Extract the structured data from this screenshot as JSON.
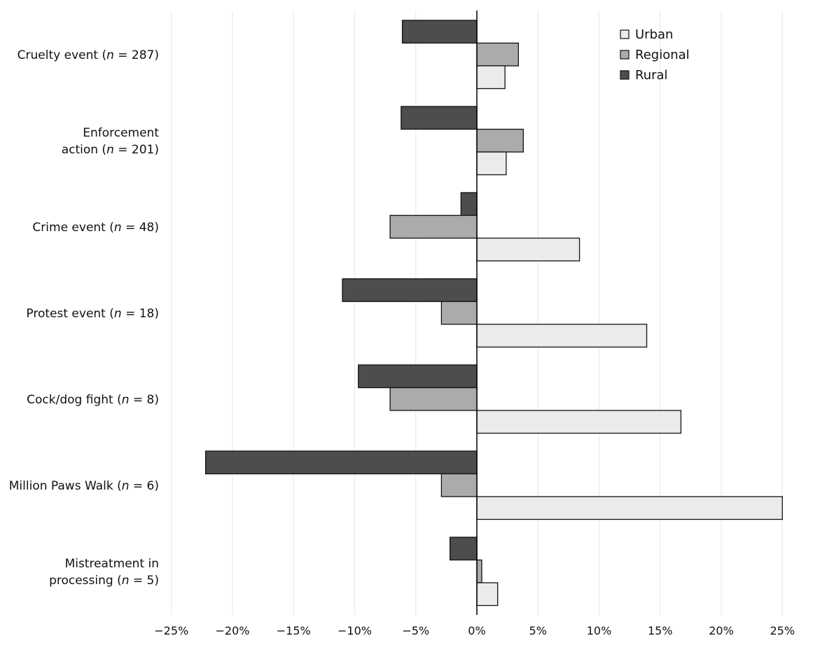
{
  "chart_data": {
    "type": "bar",
    "orientation": "horizontal",
    "categories": [
      [
        "Cruelty event (",
        "n",
        " = 287)"
      ],
      [
        "Enforcement",
        "action (",
        "n",
        " = 201)"
      ],
      [
        "Crime event (",
        "n",
        " = 48)"
      ],
      [
        "Protest event (",
        "n",
        " = 18)"
      ],
      [
        "Cock/dog fight (",
        "n",
        " = 8)"
      ],
      [
        "Million Paws Walk (",
        "n",
        " = 6)"
      ],
      [
        "Mistreatment in",
        "processing (",
        "n",
        " = 5)"
      ]
    ],
    "category_lines": [
      [
        [
          "Cruelty event (",
          "n",
          " = 287)"
        ]
      ],
      [
        [
          "Enforcement"
        ],
        [
          "action (",
          "n",
          " = 201)"
        ]
      ],
      [
        [
          "Crime event (",
          "n",
          " = 48)"
        ]
      ],
      [
        [
          "Protest event (",
          "n",
          " = 18)"
        ]
      ],
      [
        [
          "Cock/dog fight (",
          "n",
          " = 8)"
        ]
      ],
      [
        [
          "Million Paws Walk (",
          "n",
          " = 6)"
        ]
      ],
      [
        [
          "Mistreatment in"
        ],
        [
          "processing (",
          "n",
          " = 5)"
        ]
      ]
    ],
    "series": [
      {
        "name": "Rural",
        "color": "#4d4d4d",
        "values": [
          -6.1,
          -6.2,
          -1.3,
          -11.0,
          -9.7,
          -22.2,
          -2.2
        ]
      },
      {
        "name": "Regional",
        "color": "#ababab",
        "values": [
          3.4,
          3.8,
          -7.1,
          -2.9,
          -7.1,
          -2.9,
          0.4
        ]
      },
      {
        "name": "Urban",
        "color": "#ebebeb",
        "values": [
          2.3,
          2.4,
          8.4,
          13.9,
          16.7,
          25.0,
          1.7
        ]
      }
    ],
    "legend": {
      "placement": "top-right",
      "entries": [
        {
          "name": "Urban",
          "color": "#ebebeb"
        },
        {
          "name": "Regional",
          "color": "#ababab"
        },
        {
          "name": "Rural",
          "color": "#4d4d4d"
        }
      ]
    },
    "xlim": [
      -25,
      25
    ],
    "xticks": [
      -25,
      -20,
      -15,
      -10,
      -5,
      0,
      5,
      10,
      15,
      20,
      25
    ],
    "xtick_labels": [
      "−25%",
      "−20%",
      "−15%",
      "−10%",
      "−5%",
      "0%",
      "5%",
      "10%",
      "15%",
      "20%",
      "25%"
    ],
    "grid": "vertical",
    "title": "",
    "xlabel": "",
    "ylabel": ""
  }
}
